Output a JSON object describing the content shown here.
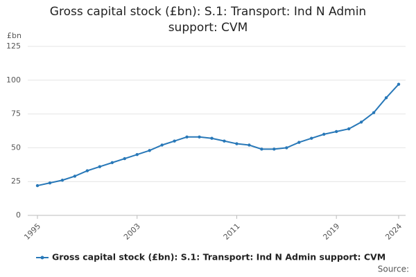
{
  "chart_data": {
    "type": "line",
    "title": "Gross capital stock (£bn): S.1: Transport: Ind N Admin support: CVM",
    "y_label": "£bn",
    "source": "Source:",
    "x": [
      1995,
      1996,
      1997,
      1998,
      1999,
      2000,
      2001,
      2002,
      2003,
      2004,
      2005,
      2006,
      2007,
      2008,
      2009,
      2010,
      2011,
      2012,
      2013,
      2014,
      2015,
      2016,
      2017,
      2018,
      2019,
      2020,
      2021,
      2022,
      2023,
      2024
    ],
    "series": [
      {
        "name": "Gross capital stock (£bn): S.1: Transport: Ind N Admin support: CVM",
        "color": "#2878b8",
        "values": [
          22,
          24,
          26,
          29,
          33,
          36,
          39,
          42,
          45,
          48,
          52,
          55,
          58,
          58,
          57,
          55,
          53,
          52,
          49,
          49,
          50,
          54,
          57,
          60,
          62,
          64,
          69,
          76,
          87,
          97
        ]
      }
    ],
    "xlim": [
      1995,
      2024
    ],
    "xticks": [
      1995,
      2003,
      2011,
      2019,
      2024
    ],
    "ylim": [
      0,
      125
    ],
    "yticks": [
      0,
      25,
      50,
      75,
      100,
      125
    ],
    "grid": true,
    "legend": "bottom"
  }
}
